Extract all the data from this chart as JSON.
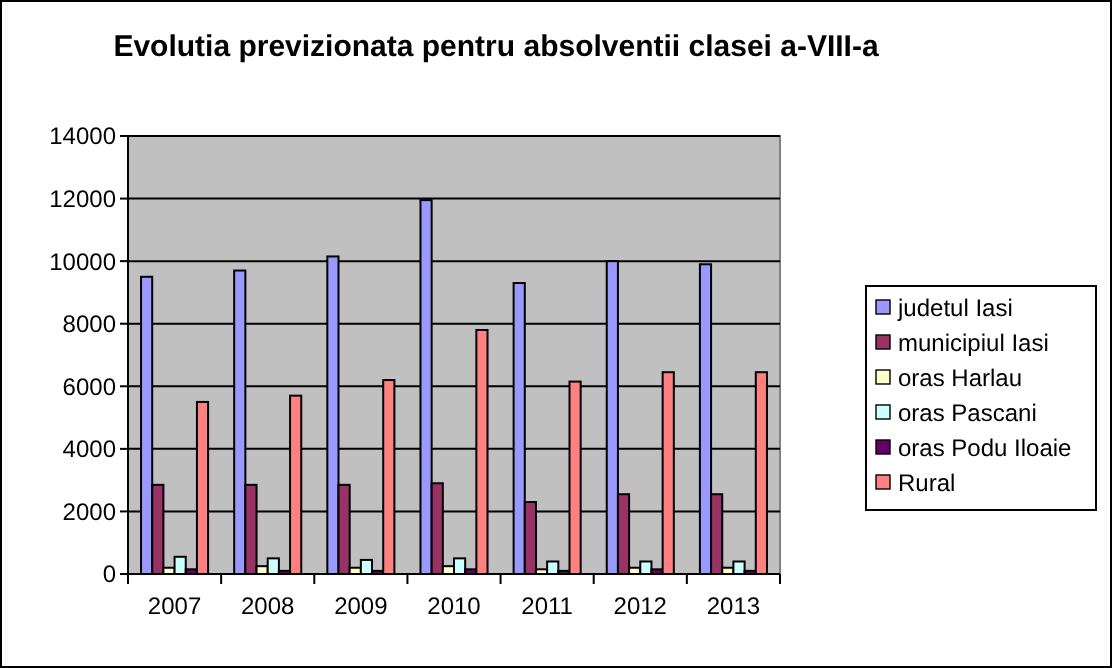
{
  "chart_data": {
    "type": "bar",
    "title": "Evolutia previzionata pentru absolventii clasei a-VIII-a",
    "categories": [
      "2007",
      "2008",
      "2009",
      "2010",
      "2011",
      "2012",
      "2013"
    ],
    "series": [
      {
        "name": "judetul Iasi",
        "color": "#9999ff",
        "values": [
          9500,
          9700,
          10150,
          11950,
          9300,
          10000,
          9900
        ]
      },
      {
        "name": "municipiul Iasi",
        "color": "#993366",
        "values": [
          2850,
          2850,
          2850,
          2900,
          2300,
          2550,
          2550
        ]
      },
      {
        "name": "oras Harlau",
        "color": "#ffffcc",
        "values": [
          200,
          250,
          200,
          250,
          150,
          200,
          200
        ]
      },
      {
        "name": "oras Pascani",
        "color": "#ccffff",
        "values": [
          550,
          500,
          450,
          500,
          400,
          400,
          400
        ]
      },
      {
        "name": "oras Podu Iloaie",
        "color": "#660066",
        "values": [
          150,
          100,
          100,
          150,
          100,
          150,
          100
        ]
      },
      {
        "name": "Rural",
        "color": "#ff8080",
        "values": [
          5500,
          5700,
          6200,
          7800,
          6150,
          6450,
          6450
        ]
      }
    ],
    "ylim": [
      0,
      14000
    ],
    "yticks": [
      0,
      2000,
      4000,
      6000,
      8000,
      10000,
      12000,
      14000
    ],
    "grid": "y",
    "legend": "right"
  }
}
